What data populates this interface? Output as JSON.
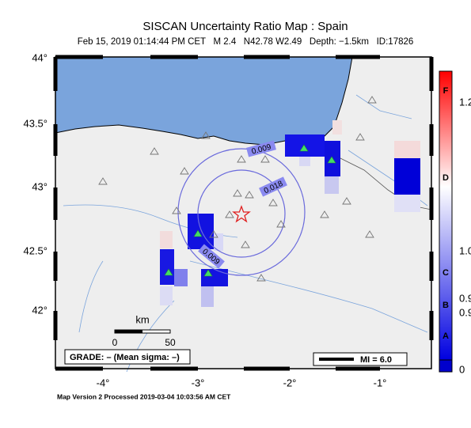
{
  "header": {
    "title": "SISCAN Uncertainty Ratio Map : Spain",
    "subtitle": "Feb 15, 2019 01:14:44 PM CET   M 2.4   N42.78 W2.49   Depth: −1.5km   ID:17826"
  },
  "map": {
    "lat_labels": [
      "44°",
      "43.5°",
      "43°",
      "42.5°",
      "42°"
    ],
    "lon_labels": [
      "-4°",
      "-3°",
      "-2°",
      "-1°"
    ],
    "contour_labels": [
      "0.009",
      "0.018",
      "0.009"
    ],
    "scale": {
      "unit": "km",
      "start": "0",
      "end": "50"
    },
    "grade": "GRADE: – (Mean sigma: –)",
    "intensity": "MI = 6.0"
  },
  "colorbar": {
    "grades": [
      "F",
      "D",
      "C",
      "B",
      "A"
    ],
    "labels": [
      "1.2",
      "1.0",
      "0.9",
      "0.9",
      "0"
    ]
  },
  "footer": "Map Version 2 Processed 2019-03-04 10:03:56 AM CET"
}
